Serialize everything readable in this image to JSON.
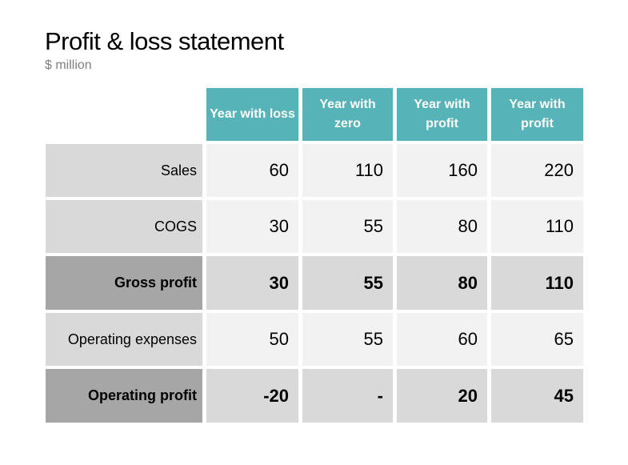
{
  "title": "Profit & loss statement",
  "subtitle": "$ million",
  "colors": {
    "header": "#56b4b8",
    "label": "#d9d9d9",
    "label_total": "#a6a6a6",
    "value": "#f2f2f2",
    "value_total": "#d9d9d9"
  },
  "columns": [
    "Year with loss",
    "Year with zero",
    "Year with profit",
    "Year with profit"
  ],
  "rows": [
    {
      "label": "Sales",
      "values": [
        "60",
        "110",
        "160",
        "220"
      ],
      "bold": false
    },
    {
      "label": "COGS",
      "values": [
        "30",
        "55",
        "80",
        "110"
      ],
      "bold": false
    },
    {
      "label": "Gross profit",
      "values": [
        "30",
        "55",
        "80",
        "110"
      ],
      "bold": true
    },
    {
      "label": "Operating expenses",
      "values": [
        "50",
        "55",
        "60",
        "65"
      ],
      "bold": false
    },
    {
      "label": "Operating profit",
      "values": [
        "-20",
        "-",
        "20",
        "45"
      ],
      "bold": true
    }
  ]
}
